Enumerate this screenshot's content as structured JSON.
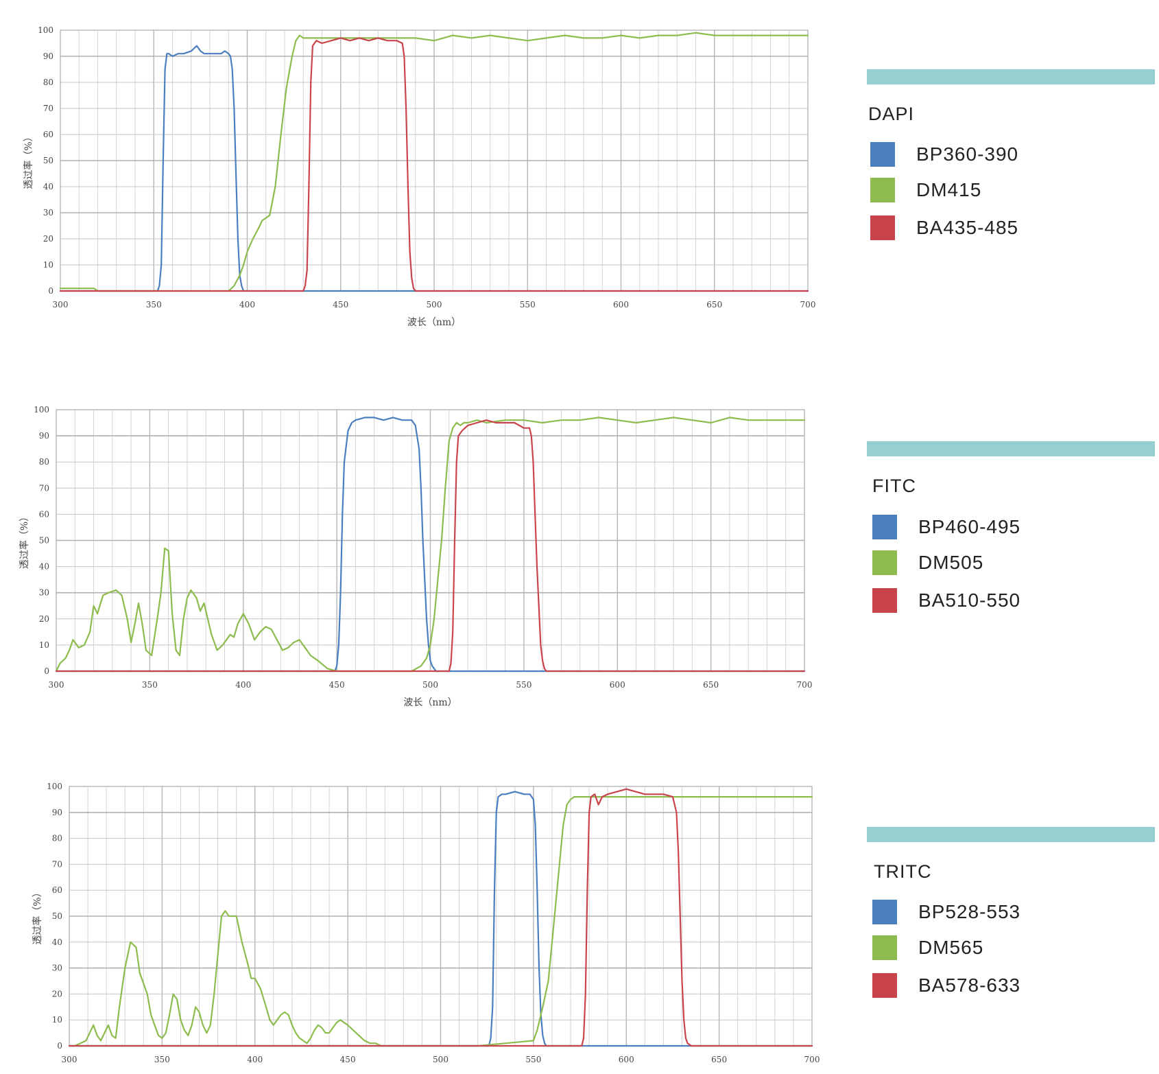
{
  "chart_data": [
    {
      "type": "line",
      "title": "",
      "xlabel": "波长（nm）",
      "ylabel": "透过率（%）",
      "xlim": [
        300,
        700
      ],
      "ylim": [
        0,
        100
      ],
      "x_ticks": [
        "300",
        "350",
        "400",
        "450",
        "500",
        "550",
        "600",
        "650",
        "700"
      ],
      "y_ticks": [
        "0",
        "10",
        "20",
        "30",
        "40",
        "50",
        "60",
        "70",
        "80",
        "90",
        "100"
      ],
      "grid": true,
      "legend_placement": "right",
      "set_name": "DAPI",
      "panel_color": "#96cfd0",
      "series": [
        {
          "name": "BP360-390",
          "color": "#4a7ebf",
          "x": [
            300,
            352,
            353,
            354,
            355,
            356,
            357,
            358,
            360,
            363,
            366,
            370,
            373,
            375,
            377,
            380,
            383,
            386,
            388,
            390,
            391,
            392,
            393,
            394,
            395,
            396,
            397,
            398,
            400,
            410,
            450,
            500,
            700
          ],
          "y": [
            0,
            0,
            2,
            10,
            50,
            85,
            91,
            91,
            90,
            91,
            91,
            92,
            94,
            92,
            91,
            91,
            91,
            91,
            92,
            91,
            90,
            85,
            70,
            45,
            20,
            6,
            2,
            0,
            0,
            0,
            0,
            0,
            0
          ]
        },
        {
          "name": "DM415",
          "color": "#8dbb4e",
          "x": [
            300,
            318,
            320,
            390,
            393,
            396,
            398,
            400,
            403,
            406,
            408,
            412,
            415,
            418,
            421,
            424,
            426,
            428,
            430,
            435,
            440,
            450,
            460,
            470,
            480,
            490,
            500,
            510,
            520,
            530,
            540,
            550,
            560,
            570,
            580,
            590,
            600,
            610,
            620,
            630,
            640,
            650,
            660,
            670,
            680,
            690,
            700
          ],
          "y": [
            1,
            1,
            0,
            0,
            2,
            6,
            10,
            15,
            20,
            24,
            27,
            29,
            40,
            60,
            78,
            90,
            96,
            98,
            97,
            97,
            97,
            97,
            97,
            97,
            97,
            97,
            96,
            98,
            97,
            98,
            97,
            96,
            97,
            98,
            97,
            97,
            98,
            97,
            98,
            98,
            99,
            98,
            98,
            98,
            98,
            98,
            98
          ]
        },
        {
          "name": "BA435-485",
          "color": "#c9444a",
          "x": [
            300,
            430,
            431,
            432,
            433,
            434,
            435,
            437,
            440,
            445,
            450,
            455,
            460,
            465,
            470,
            475,
            480,
            483,
            484,
            485,
            486,
            487,
            488,
            489,
            490,
            700
          ],
          "y": [
            0,
            0,
            2,
            8,
            40,
            80,
            94,
            96,
            95,
            96,
            97,
            96,
            97,
            96,
            97,
            96,
            96,
            95,
            90,
            70,
            40,
            15,
            5,
            1,
            0,
            0
          ]
        }
      ]
    },
    {
      "type": "line",
      "title": "",
      "xlabel": "波长（nm）",
      "ylabel": "透过率（%）",
      "xlim": [
        300,
        700
      ],
      "ylim": [
        0,
        100
      ],
      "x_ticks": [
        "300",
        "350",
        "400",
        "450",
        "500",
        "550",
        "600",
        "650",
        "700"
      ],
      "y_ticks": [
        "0",
        "10",
        "20",
        "30",
        "40",
        "50",
        "60",
        "70",
        "80",
        "90",
        "100"
      ],
      "grid": true,
      "legend_placement": "right",
      "set_name": "FITC",
      "panel_color": "#96cfd0",
      "series": [
        {
          "name": "BP460-495",
          "color": "#4a7ebf",
          "x": [
            300,
            449,
            450,
            451,
            452,
            453,
            454,
            456,
            458,
            460,
            465,
            470,
            475,
            480,
            485,
            490,
            492,
            494,
            495,
            496,
            497,
            498,
            499,
            500,
            501,
            502,
            503,
            505,
            510,
            700
          ],
          "y": [
            0,
            0,
            2,
            10,
            30,
            60,
            80,
            92,
            95,
            96,
            97,
            97,
            96,
            97,
            96,
            96,
            94,
            85,
            70,
            50,
            35,
            20,
            10,
            4,
            2,
            1,
            0,
            0,
            0,
            0
          ]
        },
        {
          "name": "DM505",
          "color": "#8dbb4e",
          "x": [
            300,
            302,
            305,
            307,
            309,
            312,
            315,
            318,
            320,
            322,
            325,
            328,
            332,
            335,
            338,
            340,
            342,
            344,
            346,
            348,
            351,
            354,
            356,
            358,
            360,
            362,
            364,
            366,
            368,
            370,
            372,
            375,
            377,
            379,
            381,
            383,
            386,
            389,
            391,
            393,
            395,
            397,
            400,
            403,
            406,
            409,
            412,
            415,
            418,
            421,
            424,
            427,
            430,
            433,
            436,
            440,
            445,
            450,
            455,
            460,
            470,
            480,
            490,
            495,
            498,
            500,
            502,
            504,
            506,
            508,
            510,
            512,
            514,
            516,
            518,
            520,
            525,
            530,
            540,
            550,
            560,
            570,
            580,
            590,
            600,
            610,
            620,
            630,
            640,
            650,
            660,
            670,
            680,
            690,
            700
          ],
          "y": [
            0,
            3,
            5,
            8,
            12,
            9,
            10,
            15,
            25,
            22,
            29,
            30,
            31,
            29,
            20,
            11,
            18,
            26,
            18,
            8,
            6,
            20,
            30,
            47,
            46,
            22,
            8,
            6,
            20,
            28,
            31,
            28,
            23,
            26,
            20,
            14,
            8,
            10,
            12,
            14,
            13,
            18,
            22,
            18,
            12,
            15,
            17,
            16,
            12,
            8,
            9,
            11,
            12,
            9,
            6,
            4,
            1,
            0,
            0,
            0,
            0,
            0,
            0,
            2,
            5,
            10,
            20,
            35,
            50,
            70,
            88,
            93,
            95,
            94,
            95,
            95,
            96,
            95,
            96,
            96,
            95,
            96,
            96,
            97,
            96,
            95,
            96,
            97,
            96,
            95,
            97,
            96,
            96,
            96,
            96
          ]
        },
        {
          "name": "BA510-550",
          "color": "#c9444a",
          "x": [
            300,
            510,
            511,
            512,
            513,
            514,
            515,
            517,
            520,
            525,
            530,
            535,
            540,
            545,
            550,
            553,
            554,
            555,
            556,
            557,
            558,
            559,
            560,
            561,
            562,
            565,
            700
          ],
          "y": [
            0,
            0,
            3,
            15,
            50,
            80,
            90,
            92,
            94,
            95,
            96,
            95,
            95,
            95,
            93,
            93,
            90,
            80,
            60,
            40,
            25,
            10,
            4,
            1,
            0,
            0,
            0
          ]
        }
      ]
    },
    {
      "type": "line",
      "title": "",
      "xlabel": "",
      "ylabel": "透过率（%）",
      "xlim": [
        300,
        700
      ],
      "ylim": [
        0,
        100
      ],
      "x_ticks": [
        "300",
        "350",
        "400",
        "450",
        "500",
        "550",
        "600",
        "650",
        "700"
      ],
      "y_ticks": [
        "0",
        "10",
        "20",
        "30",
        "40",
        "50",
        "60",
        "70",
        "80",
        "90",
        "100"
      ],
      "grid": true,
      "legend_placement": "right",
      "set_name": "TRITC",
      "panel_color": "#96cfd0",
      "series": [
        {
          "name": "BP528-553",
          "color": "#4a7ebf",
          "x": [
            300,
            526,
            527,
            528,
            529,
            530,
            531,
            533,
            535,
            540,
            545,
            548,
            550,
            551,
            552,
            553,
            554,
            555,
            556,
            557,
            560,
            700
          ],
          "y": [
            0,
            0,
            3,
            15,
            60,
            90,
            96,
            97,
            97,
            98,
            97,
            97,
            95,
            85,
            60,
            30,
            12,
            4,
            1,
            0,
            0,
            0
          ]
        },
        {
          "name": "DM565",
          "color": "#8dbb4e",
          "x": [
            300,
            303,
            306,
            309,
            311,
            313,
            315,
            317,
            319,
            321,
            323,
            325,
            327,
            330,
            333,
            336,
            338,
            340,
            342,
            344,
            346,
            348,
            350,
            352,
            354,
            356,
            358,
            360,
            362,
            364,
            366,
            368,
            370,
            372,
            374,
            376,
            378,
            380,
            382,
            384,
            386,
            390,
            393,
            396,
            398,
            400,
            403,
            406,
            408,
            410,
            412,
            414,
            416,
            418,
            420,
            422,
            424,
            426,
            428,
            430,
            432,
            434,
            436,
            438,
            440,
            442,
            444,
            446,
            450,
            453,
            456,
            459,
            462,
            465,
            468,
            470,
            472,
            474,
            476,
            478,
            480,
            482,
            484,
            486,
            490,
            500,
            520,
            550,
            552,
            555,
            558,
            560,
            562,
            564,
            566,
            568,
            570,
            572,
            574,
            576,
            578,
            580,
            590,
            600,
            620,
            640,
            660,
            680,
            700
          ],
          "y": [
            0,
            0,
            1,
            2,
            5,
            8,
            4,
            2,
            5,
            8,
            4,
            3,
            15,
            30,
            40,
            38,
            28,
            24,
            20,
            12,
            8,
            4,
            3,
            5,
            12,
            20,
            18,
            10,
            6,
            4,
            8,
            15,
            13,
            8,
            5,
            8,
            20,
            35,
            50,
            52,
            50,
            50,
            40,
            32,
            26,
            26,
            22,
            15,
            10,
            8,
            10,
            12,
            13,
            12,
            8,
            5,
            3,
            2,
            1,
            3,
            6,
            8,
            7,
            5,
            5,
            7,
            9,
            10,
            8,
            6,
            4,
            2,
            1,
            1,
            0,
            0,
            0,
            0,
            0,
            0,
            0,
            0,
            0,
            0,
            0,
            0,
            0,
            2,
            6,
            15,
            25,
            40,
            55,
            70,
            85,
            93,
            95,
            96,
            96,
            96,
            96,
            96,
            96,
            96,
            96,
            96,
            96,
            96,
            96
          ]
        },
        {
          "name": "BA578-633",
          "color": "#c9444a",
          "x": [
            300,
            576,
            577,
            578,
            579,
            580,
            581,
            583,
            585,
            587,
            590,
            595,
            600,
            605,
            610,
            615,
            620,
            625,
            627,
            628,
            629,
            630,
            631,
            632,
            633,
            635,
            700
          ],
          "y": [
            0,
            0,
            3,
            20,
            60,
            90,
            96,
            97,
            93,
            96,
            97,
            98,
            99,
            98,
            97,
            97,
            97,
            96,
            90,
            75,
            50,
            25,
            10,
            3,
            1,
            0,
            0
          ]
        }
      ]
    }
  ]
}
